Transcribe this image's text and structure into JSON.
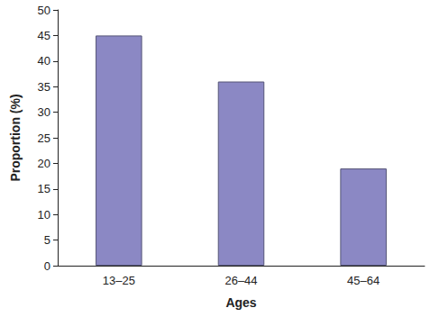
{
  "chart_data": {
    "type": "bar",
    "x_label": "Ages",
    "y_label": "Proportion (%)",
    "categories": [
      "13–25",
      "26–44",
      "45–64"
    ],
    "values": [
      45,
      36,
      19
    ],
    "color": "#8b88c4",
    "ylim": [
      0,
      50
    ],
    "yticks": [
      0,
      5,
      10,
      15,
      20,
      25,
      30,
      35,
      40,
      45,
      50
    ],
    "grid": false
  }
}
